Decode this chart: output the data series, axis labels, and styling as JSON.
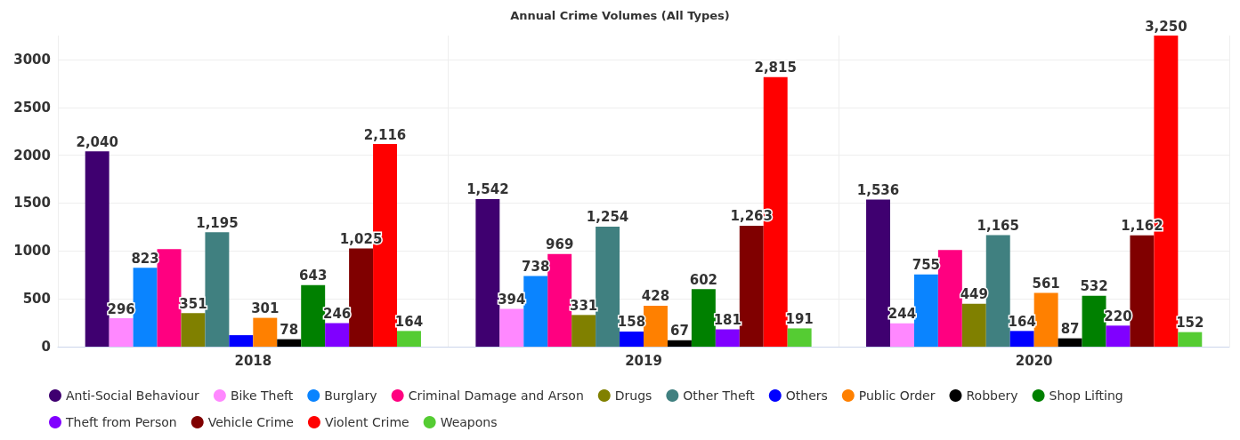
{
  "chart_data": {
    "type": "bar",
    "title": "Annual Crime Volumes (All Types)",
    "categories": [
      "2018",
      "2019",
      "2020"
    ],
    "ylim": [
      0,
      3250
    ],
    "yticks": [
      0,
      500,
      1000,
      1500,
      2000,
      2500,
      3000
    ],
    "grid": "y",
    "legend": "bottom",
    "series": [
      {
        "name": "Anti-Social Behaviour",
        "color": "#3f0070",
        "values": [
          2040,
          1542,
          1536
        ],
        "value_labels": [
          "2,040",
          "1,542",
          "1,536"
        ]
      },
      {
        "name": "Bike Theft",
        "color": "#ff88ff",
        "values": [
          296,
          394,
          244
        ],
        "value_labels": [
          "296",
          "394",
          "244"
        ]
      },
      {
        "name": "Burglary",
        "color": "#0a84ff",
        "values": [
          823,
          738,
          755
        ],
        "value_labels": [
          "823",
          "738",
          "755"
        ]
      },
      {
        "name": "Criminal Damage and Arson",
        "color": "#ff0080",
        "values": [
          1020,
          969,
          1010
        ],
        "value_labels": [
          null,
          "969",
          null
        ]
      },
      {
        "name": "Drugs",
        "color": "#808000",
        "values": [
          351,
          331,
          449
        ],
        "value_labels": [
          "351",
          "331",
          "449"
        ]
      },
      {
        "name": "Other Theft",
        "color": "#408080",
        "values": [
          1195,
          1254,
          1165
        ],
        "value_labels": [
          "1,195",
          "1,254",
          "1,165"
        ]
      },
      {
        "name": "Others",
        "color": "#0000ff",
        "values": [
          120,
          158,
          164
        ],
        "value_labels": [
          null,
          "158",
          "164"
        ]
      },
      {
        "name": "Public Order",
        "color": "#ff8000",
        "values": [
          301,
          428,
          561
        ],
        "value_labels": [
          "301",
          "428",
          "561"
        ]
      },
      {
        "name": "Robbery",
        "color": "#000000",
        "values": [
          78,
          67,
          87
        ],
        "value_labels": [
          "78",
          "67",
          "87"
        ]
      },
      {
        "name": "Shop Lifting",
        "color": "#008000",
        "values": [
          643,
          602,
          532
        ],
        "value_labels": [
          "643",
          "602",
          "532"
        ]
      },
      {
        "name": "Theft from Person",
        "color": "#8000ff",
        "values": [
          246,
          181,
          220
        ],
        "value_labels": [
          "246",
          "181",
          "220"
        ]
      },
      {
        "name": "Vehicle Crime",
        "color": "#800000",
        "values": [
          1025,
          1263,
          1162
        ],
        "value_labels": [
          "1,025",
          "1,263",
          "1,162"
        ]
      },
      {
        "name": "Violent Crime",
        "color": "#ff0000",
        "values": [
          2116,
          2815,
          3250
        ],
        "value_labels": [
          "2,116",
          "2,815",
          "3,250"
        ]
      },
      {
        "name": "Weapons",
        "color": "#55cc33",
        "values": [
          164,
          191,
          152
        ],
        "value_labels": [
          "164",
          "191",
          "152"
        ]
      }
    ]
  }
}
